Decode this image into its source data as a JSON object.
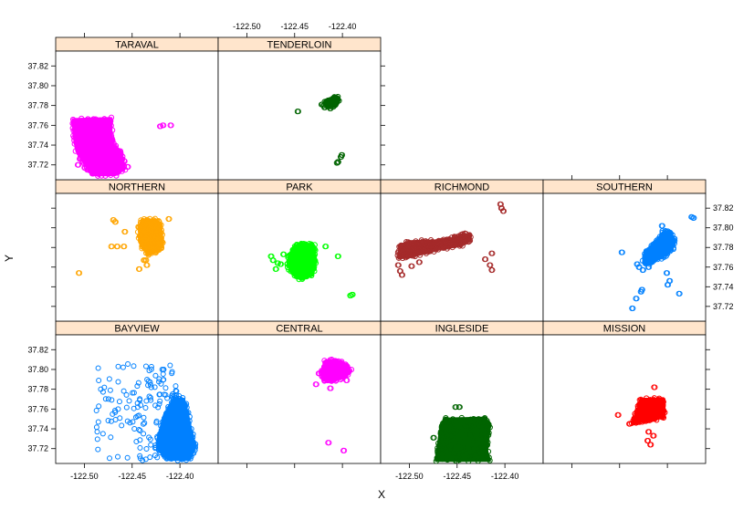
{
  "chart_data": {
    "type": "scatter",
    "layout": "trellis",
    "xlabel": "X",
    "ylabel": "Y",
    "x_ticks": [
      "-122.50",
      "-122.45",
      "-122.40"
    ],
    "x_tick_values": [
      -122.5,
      -122.45,
      -122.4
    ],
    "y_ticks": [
      "37.72",
      "37.74",
      "37.76",
      "37.78",
      "37.80",
      "37.82"
    ],
    "y_tick_values": [
      37.72,
      37.74,
      37.76,
      37.78,
      37.8,
      37.82
    ],
    "xlim": [
      -122.53,
      -122.36
    ],
    "ylim": [
      37.705,
      37.835
    ],
    "strip_color": "#ffe5cc",
    "panels": [
      {
        "name": "BAYVIEW",
        "row": 0,
        "col": 0,
        "color": "#0080ff",
        "shape": "polygon",
        "polygon": [
          [
            -122.417,
            37.752
          ],
          [
            -122.407,
            37.77
          ],
          [
            -122.396,
            37.77
          ],
          [
            -122.392,
            37.755
          ],
          [
            -122.388,
            37.737
          ],
          [
            -122.384,
            37.722
          ],
          [
            -122.39,
            37.709
          ],
          [
            -122.412,
            37.709
          ],
          [
            -122.422,
            37.718
          ],
          [
            -122.423,
            37.73
          ]
        ],
        "sparse_box": [
          -122.488,
          -122.398,
          37.708,
          37.806
        ],
        "sparse_count": 170
      },
      {
        "name": "CENTRAL",
        "row": 0,
        "col": 1,
        "color": "#ff00ff",
        "shape": "polygon",
        "polygon": [
          [
            -122.422,
            37.798
          ],
          [
            -122.418,
            37.808
          ],
          [
            -122.408,
            37.809
          ],
          [
            -122.398,
            37.806
          ],
          [
            -122.392,
            37.799
          ],
          [
            -122.397,
            37.793
          ],
          [
            -122.41,
            37.788
          ],
          [
            -122.42,
            37.789
          ]
        ],
        "points": [
          [
            -122.425,
            37.796
          ],
          [
            -122.428,
            37.785
          ],
          [
            -122.413,
            37.781
          ],
          [
            -122.396,
            37.789
          ],
          [
            -122.415,
            37.726
          ],
          [
            -122.399,
            37.718
          ]
        ]
      },
      {
        "name": "INGLESIDE",
        "row": 0,
        "col": 2,
        "color": "#006400",
        "shape": "polygon",
        "polygon": [
          [
            -122.467,
            37.742
          ],
          [
            -122.463,
            37.75
          ],
          [
            -122.42,
            37.751
          ],
          [
            -122.416,
            37.742
          ],
          [
            -122.419,
            37.718
          ],
          [
            -122.416,
            37.708
          ],
          [
            -122.472,
            37.708
          ],
          [
            -122.47,
            37.722
          ]
        ],
        "points": [
          [
            -122.448,
            37.762
          ],
          [
            -122.452,
            37.762
          ],
          [
            -122.475,
            37.731
          ]
        ]
      },
      {
        "name": "MISSION",
        "row": 0,
        "col": 3,
        "color": "#ff0000",
        "shape": "polygon",
        "polygon": [
          [
            -122.43,
            37.763
          ],
          [
            -122.428,
            37.77
          ],
          [
            -122.404,
            37.77
          ],
          [
            -122.403,
            37.752
          ],
          [
            -122.418,
            37.749
          ],
          [
            -122.426,
            37.748
          ],
          [
            -122.436,
            37.745
          ],
          [
            -122.434,
            37.752
          ]
        ],
        "points": [
          [
            -122.452,
            37.754
          ],
          [
            -122.414,
            37.782
          ],
          [
            -122.42,
            37.737
          ],
          [
            -122.415,
            37.733
          ],
          [
            -122.421,
            37.728
          ],
          [
            -122.418,
            37.724
          ],
          [
            -122.44,
            37.745
          ]
        ]
      },
      {
        "name": "NORTHERN",
        "row": 1,
        "col": 0,
        "color": "#ffa500",
        "shape": "polygon",
        "polygon": [
          [
            -122.443,
            37.8
          ],
          [
            -122.44,
            37.808
          ],
          [
            -122.425,
            37.808
          ],
          [
            -122.42,
            37.803
          ],
          [
            -122.418,
            37.781
          ],
          [
            -122.424,
            37.776
          ],
          [
            -122.433,
            37.773
          ],
          [
            -122.441,
            37.782
          ]
        ],
        "points": [
          [
            -122.47,
            37.808
          ],
          [
            -122.468,
            37.806
          ],
          [
            -122.458,
            37.796
          ],
          [
            -122.472,
            37.781
          ],
          [
            -122.466,
            37.781
          ],
          [
            -122.459,
            37.781
          ],
          [
            -122.438,
            37.767
          ],
          [
            -122.436,
            37.767
          ],
          [
            -122.443,
            37.758
          ],
          [
            -122.412,
            37.809
          ],
          [
            -122.506,
            37.754
          ],
          [
            -122.435,
            37.762
          ]
        ]
      },
      {
        "name": "PARK",
        "row": 1,
        "col": 1,
        "color": "#00ff00",
        "shape": "polygon",
        "polygon": [
          [
            -122.455,
            37.773
          ],
          [
            -122.449,
            37.782
          ],
          [
            -122.44,
            37.784
          ],
          [
            -122.43,
            37.782
          ],
          [
            -122.428,
            37.768
          ],
          [
            -122.431,
            37.752
          ],
          [
            -122.444,
            37.748
          ],
          [
            -122.452,
            37.753
          ],
          [
            -122.457,
            37.762
          ]
        ],
        "points": [
          [
            -122.475,
            37.771
          ],
          [
            -122.473,
            37.767
          ],
          [
            -122.468,
            37.764
          ],
          [
            -122.465,
            37.763
          ],
          [
            -122.47,
            37.758
          ],
          [
            -122.462,
            37.773
          ],
          [
            -122.418,
            37.781
          ],
          [
            -122.405,
            37.771
          ],
          [
            -122.39,
            37.732
          ],
          [
            -122.392,
            37.731
          ]
        ]
      },
      {
        "name": "RICHMOND",
        "row": 1,
        "col": 2,
        "color": "#a52a2a",
        "shape": "polygon",
        "polygon": [
          [
            -122.51,
            37.782
          ],
          [
            -122.5,
            37.786
          ],
          [
            -122.47,
            37.787
          ],
          [
            -122.455,
            37.789
          ],
          [
            -122.445,
            37.793
          ],
          [
            -122.437,
            37.793
          ],
          [
            -122.436,
            37.787
          ],
          [
            -122.447,
            37.782
          ],
          [
            -122.47,
            37.778
          ],
          [
            -122.493,
            37.772
          ],
          [
            -122.511,
            37.769
          ]
        ],
        "points": [
          [
            -122.512,
            37.762
          ],
          [
            -122.51,
            37.756
          ],
          [
            -122.498,
            37.761
          ],
          [
            -122.508,
            37.752
          ],
          [
            -122.49,
            37.765
          ],
          [
            -122.414,
            37.774
          ],
          [
            -122.421,
            37.768
          ],
          [
            -122.416,
            37.762
          ],
          [
            -122.414,
            37.757
          ],
          [
            -122.405,
            37.824
          ],
          [
            -122.404,
            37.82
          ],
          [
            -122.402,
            37.817
          ]
        ]
      },
      {
        "name": "SOUTHERN",
        "row": 1,
        "col": 3,
        "color": "#0080ff",
        "shape": "polygon",
        "polygon": [
          [
            -122.423,
            37.776
          ],
          [
            -122.41,
            37.788
          ],
          [
            -122.404,
            37.796
          ],
          [
            -122.397,
            37.796
          ],
          [
            -122.393,
            37.787
          ],
          [
            -122.395,
            37.778
          ],
          [
            -122.404,
            37.771
          ],
          [
            -122.42,
            37.763
          ],
          [
            -122.425,
            37.765
          ]
        ],
        "points": [
          [
            -122.448,
            37.775
          ],
          [
            -122.432,
            37.763
          ],
          [
            -122.43,
            37.76
          ],
          [
            -122.426,
            37.757
          ],
          [
            -122.42,
            37.76
          ],
          [
            -122.401,
            37.754
          ],
          [
            -122.398,
            37.746
          ],
          [
            -122.406,
            37.802
          ],
          [
            -122.375,
            37.811
          ],
          [
            -122.373,
            37.81
          ],
          [
            -122.388,
            37.733
          ],
          [
            -122.427,
            37.737
          ],
          [
            -122.433,
            37.728
          ],
          [
            -122.437,
            37.718
          ],
          [
            -122.4,
            37.742
          ],
          [
            -122.428,
            37.735
          ]
        ]
      },
      {
        "name": "TARAVAL",
        "row": 2,
        "col": 0,
        "color": "#ff00ff",
        "shape": "polygon",
        "polygon": [
          [
            -122.512,
            37.766
          ],
          [
            -122.472,
            37.767
          ],
          [
            -122.472,
            37.749
          ],
          [
            -122.47,
            37.74
          ],
          [
            -122.463,
            37.735
          ],
          [
            -122.46,
            37.727
          ],
          [
            -122.458,
            37.716
          ],
          [
            -122.468,
            37.71
          ],
          [
            -122.491,
            37.71
          ],
          [
            -122.5,
            37.722
          ],
          [
            -122.508,
            37.734
          ],
          [
            -122.511,
            37.75
          ]
        ],
        "points": [
          [
            -122.505,
            37.726
          ],
          [
            -122.502,
            37.723
          ],
          [
            -122.5,
            37.717
          ],
          [
            -122.497,
            37.715
          ],
          [
            -122.494,
            37.714
          ],
          [
            -122.484,
            37.715
          ],
          [
            -122.455,
            37.718
          ],
          [
            -122.421,
            37.759
          ],
          [
            -122.418,
            37.76
          ],
          [
            -122.41,
            37.76
          ],
          [
            -122.507,
            37.72
          ]
        ]
      },
      {
        "name": "TENDERLOIN",
        "row": 2,
        "col": 1,
        "color": "#006400",
        "shape": "polygon",
        "polygon": [
          [
            -122.418,
            37.784
          ],
          [
            -122.41,
            37.787
          ],
          [
            -122.406,
            37.788
          ],
          [
            -122.404,
            37.785
          ],
          [
            -122.408,
            37.78
          ],
          [
            -122.416,
            37.779
          ]
        ],
        "points": [
          [
            -122.42,
            37.78
          ],
          [
            -122.422,
            37.781
          ],
          [
            -122.419,
            37.778
          ],
          [
            -122.413,
            37.777
          ],
          [
            -122.447,
            37.774
          ],
          [
            -122.401,
            37.73
          ],
          [
            -122.402,
            37.728
          ],
          [
            -122.405,
            37.723
          ],
          [
            -122.406,
            37.722
          ]
        ]
      }
    ]
  }
}
